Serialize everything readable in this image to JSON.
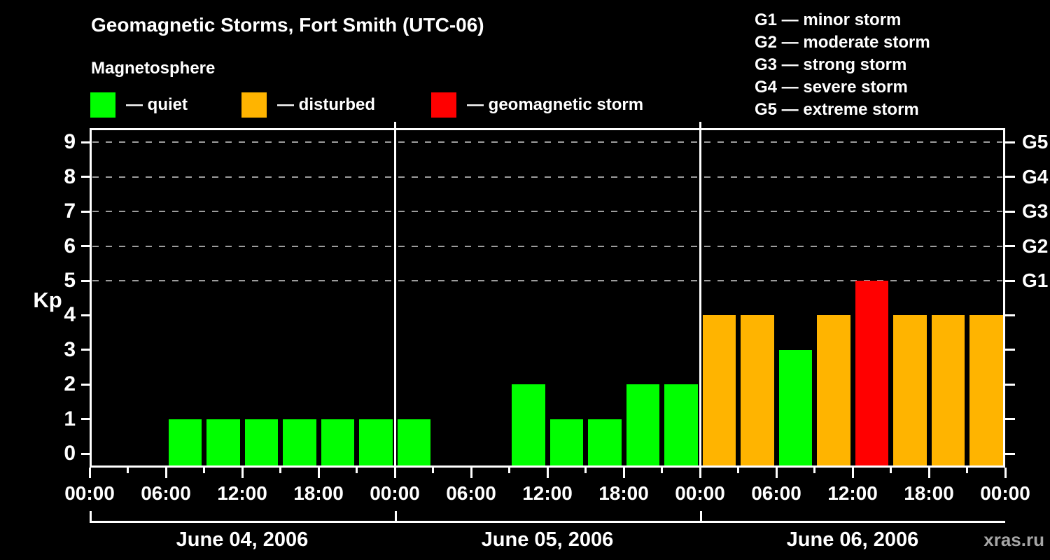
{
  "header": {
    "title": "Geomagnetic Storms, Fort Smith (UTC-06)",
    "subtitle": "Magnetosphere"
  },
  "legend": {
    "items": [
      {
        "key": "quiet",
        "label": "— quiet"
      },
      {
        "key": "disturbed",
        "label": "— disturbed"
      },
      {
        "key": "storm",
        "label": "— geomagnetic storm"
      }
    ]
  },
  "storm_scale": [
    "G1 — minor storm",
    "G2 — moderate storm",
    "G3 — strong storm",
    "G4 — severe storm",
    "G5 — extreme storm"
  ],
  "watermark": {
    "text": "xras.ru"
  },
  "colors": {
    "quiet": "#00ff00",
    "disturbed": "#ffb400",
    "storm": "#ff0000",
    "axis": "#ffffff",
    "grid": "#9c9c9c",
    "background": "#000000",
    "watermark": "#a6a6a6"
  },
  "chart_data": {
    "type": "bar",
    "title": "Geomagnetic Storms, Fort Smith (UTC-06)",
    "ylabel": "Kp",
    "ylim": [
      0,
      9
    ],
    "yticks": [
      0,
      1,
      2,
      3,
      4,
      5,
      6,
      7,
      8,
      9
    ],
    "grid_dashed_at": [
      5,
      6,
      7,
      8,
      9
    ],
    "right_axis": [
      {
        "kp": 5,
        "label": "G1"
      },
      {
        "kp": 6,
        "label": "G2"
      },
      {
        "kp": 7,
        "label": "G3"
      },
      {
        "kp": 8,
        "label": "G4"
      },
      {
        "kp": 9,
        "label": "G5"
      }
    ],
    "x_interval_hours": 3,
    "time_tick_cycle": [
      "00:00",
      "06:00",
      "12:00",
      "18:00"
    ],
    "days": [
      {
        "date": "June 04, 2006",
        "kp": [
          0,
          0,
          1,
          1,
          1,
          1,
          1,
          1
        ]
      },
      {
        "date": "June 05, 2006",
        "kp": [
          1,
          0,
          0,
          2,
          1,
          1,
          2,
          2
        ]
      },
      {
        "date": "June 06, 2006",
        "kp": [
          4,
          4,
          3,
          4,
          5,
          4,
          4,
          4
        ]
      }
    ],
    "color_rule": {
      "quiet": "Kp 1-3",
      "disturbed": "Kp 4",
      "storm": "Kp ≥ 5"
    }
  }
}
